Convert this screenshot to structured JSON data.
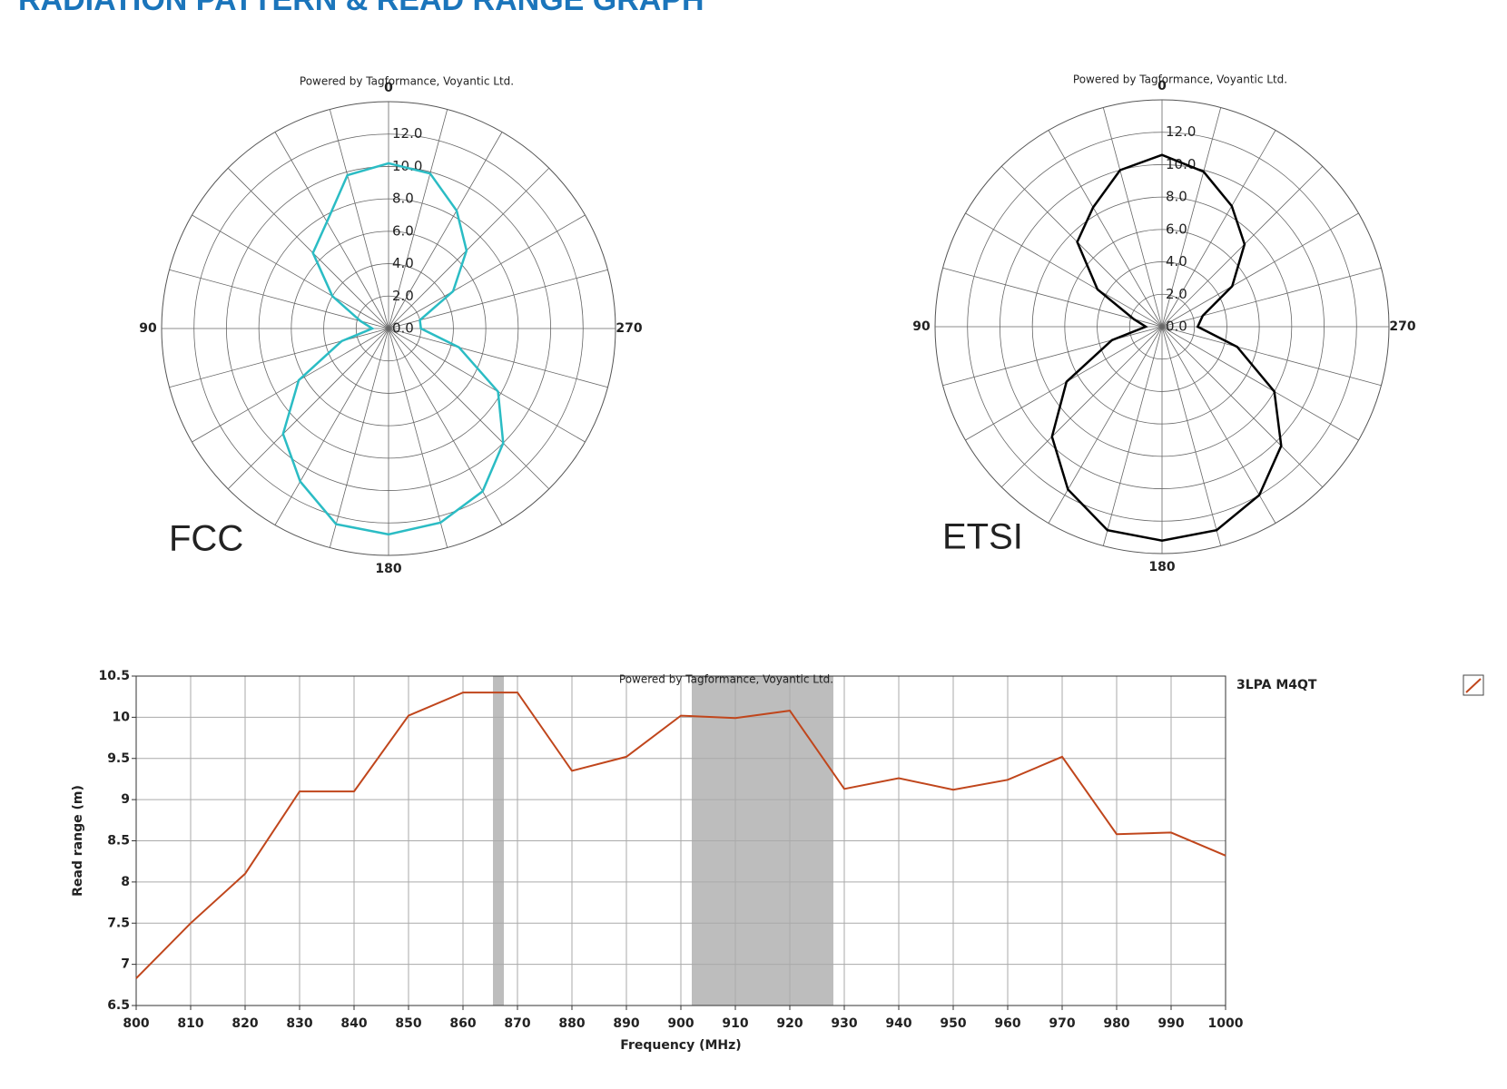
{
  "title": "RADIATION PATTERN & READ RANGE GRAPH",
  "chart_data": [
    {
      "type": "polar",
      "label": "FCC",
      "watermark": "Powered by Tagformance, Voyantic Ltd.",
      "color": "#2bbcc4",
      "theta": [
        0,
        15,
        30,
        45,
        60,
        75,
        90,
        105,
        120,
        135,
        150,
        165,
        180,
        195,
        210,
        225,
        240,
        255,
        270,
        285,
        300,
        315,
        330,
        345
      ],
      "values": [
        10.2,
        9.8,
        7.6,
        6.6,
        4.0,
        1.8,
        1.0,
        3.0,
        6.4,
        9.2,
        10.9,
        12.5,
        12.7,
        12.4,
        11.6,
        10.0,
        7.8,
        4.5,
        2.0,
        2.0,
        4.6,
        6.8,
        8.4,
        9.9
      ],
      "rlim": [
        0,
        14
      ],
      "rticks": [
        {
          "value": 0,
          "label": "0.0"
        },
        {
          "value": 2,
          "label": "2.0"
        },
        {
          "value": 4,
          "label": "4.0"
        },
        {
          "value": 6,
          "label": "6.0"
        },
        {
          "value": 8,
          "label": "8.0"
        },
        {
          "value": 10,
          "label": "10.0"
        },
        {
          "value": 12,
          "label": "12.0"
        }
      ],
      "angle_ticks": [
        0,
        90,
        180,
        270
      ]
    },
    {
      "type": "polar",
      "label": "ETSI",
      "watermark": "Powered by Tagformance, Voyantic Ltd.",
      "color": "#000000",
      "theta": [
        0,
        15,
        30,
        45,
        60,
        75,
        90,
        105,
        120,
        135,
        150,
        165,
        180,
        195,
        210,
        225,
        240,
        255,
        270,
        285,
        300,
        315,
        330,
        345
      ],
      "values": [
        10.6,
        10.0,
        8.5,
        7.4,
        4.6,
        1.8,
        1.0,
        3.2,
        6.8,
        9.6,
        11.6,
        13.0,
        13.2,
        13.0,
        12.0,
        10.4,
        8.0,
        4.8,
        2.2,
        2.6,
        5.0,
        7.2,
        8.6,
        9.9
      ],
      "rlim": [
        0,
        14
      ],
      "rticks": [
        {
          "value": 0,
          "label": "0.0"
        },
        {
          "value": 2,
          "label": "2.0"
        },
        {
          "value": 4,
          "label": "4.0"
        },
        {
          "value": 6,
          "label": "6.0"
        },
        {
          "value": 8,
          "label": "8.0"
        },
        {
          "value": 10,
          "label": "10.0"
        },
        {
          "value": 12,
          "label": "12.0"
        }
      ],
      "angle_ticks": [
        0,
        90,
        180,
        270
      ]
    },
    {
      "type": "line",
      "watermark": "Powered by Tagformance, Voyantic Ltd.",
      "x_label": "Frequency (MHz)",
      "y_label": "Read range (m)",
      "x": [
        800,
        810,
        820,
        830,
        840,
        850,
        860,
        870,
        880,
        890,
        900,
        910,
        920,
        930,
        940,
        950,
        960,
        970,
        980,
        990,
        1000
      ],
      "series": [
        {
          "name": "3LPA M4QT",
          "color": "#c0461c",
          "values": [
            6.83,
            7.5,
            8.1,
            9.1,
            9.1,
            10.02,
            10.3,
            10.3,
            9.35,
            9.52,
            10.02,
            9.99,
            10.08,
            9.13,
            9.26,
            9.12,
            9.24,
            9.52,
            8.58,
            8.6,
            8.32
          ]
        }
      ],
      "bands": [
        [
          865.5,
          867.5
        ],
        [
          902,
          928
        ]
      ],
      "band_color": "#bdbdbd",
      "xlim": [
        800,
        1000
      ],
      "xticks": [
        800,
        810,
        820,
        830,
        840,
        850,
        860,
        870,
        880,
        890,
        900,
        910,
        920,
        930,
        940,
        950,
        960,
        970,
        980,
        990,
        1000
      ],
      "ylim": [
        6.5,
        10.5
      ],
      "yticks": [
        6.5,
        7,
        7.5,
        8,
        8.5,
        9,
        9.5,
        10,
        10.5
      ],
      "grid": true
    }
  ]
}
